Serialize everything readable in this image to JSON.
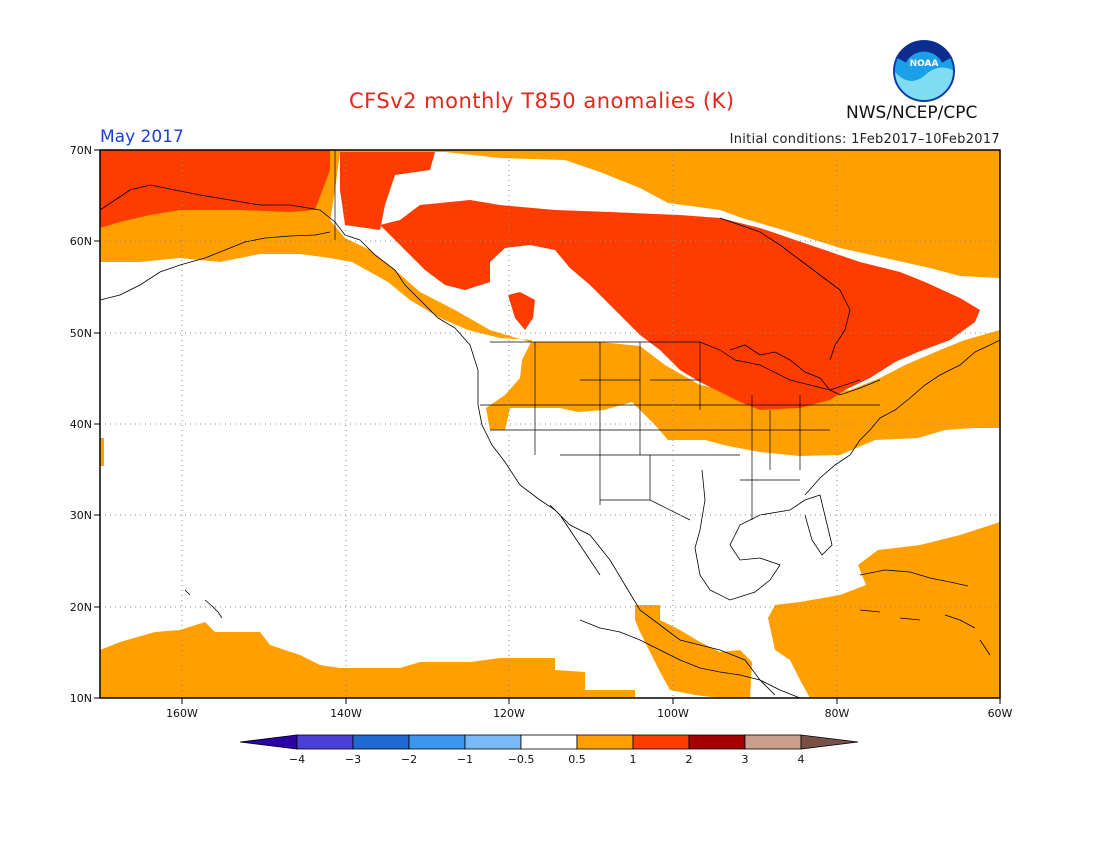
{
  "header": {
    "title": "CFSv2 monthly T850 anomalies (K)",
    "month": "May 2017",
    "initial_conditions": "Initial conditions: 1Feb2017–10Feb2017",
    "agency": "NWS/NCEP/CPC",
    "logo_text": "NOAA"
  },
  "map": {
    "lon_range": [
      -170,
      -60
    ],
    "lat_range": [
      10,
      70
    ],
    "lat_ticks": [
      "10N",
      "20N",
      "30N",
      "40N",
      "50N",
      "60N",
      "70N"
    ],
    "lon_ticks": [
      "160W",
      "140W",
      "120W",
      "100W",
      "80W",
      "60W"
    ],
    "grid": true,
    "anomaly_colors": {
      "0.5 to 1": "#ffa000",
      "1 to 2": "#ff3c00"
    }
  },
  "colorbar": {
    "labels": [
      "−4",
      "−3",
      "−2",
      "−1",
      "−0.5",
      "0.5",
      "1",
      "2",
      "3",
      "4"
    ],
    "colors": [
      "#2a00a8",
      "#4a40d6",
      "#1e6ad2",
      "#3c96f0",
      "#78b9fa",
      "#ffffff",
      "#ffa000",
      "#ff3c00",
      "#a50000",
      "#c8a08c",
      "#785046"
    ]
  }
}
